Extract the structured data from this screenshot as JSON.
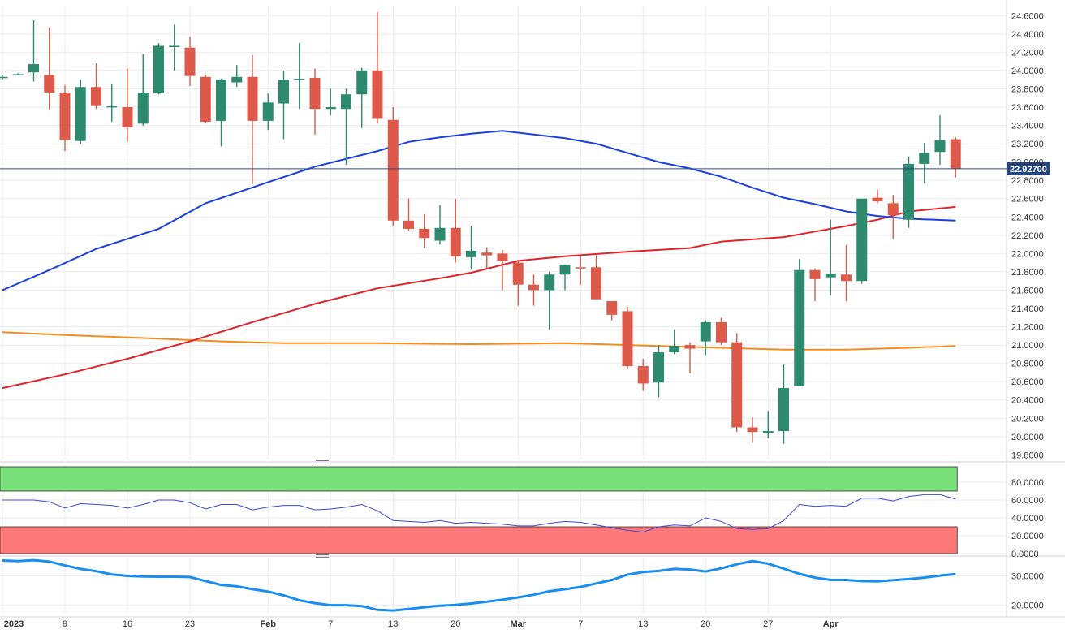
{
  "chart_data": [
    {
      "type": "candlestick",
      "panel": "price",
      "yticks": [
        "24.6000",
        "24.4000",
        "24.2000",
        "24.0000",
        "23.8000",
        "23.6000",
        "23.4000",
        "23.2000",
        "23.0000",
        "22.8000",
        "22.6000",
        "22.4000",
        "22.2000",
        "22.0000",
        "21.8000",
        "21.6000",
        "21.4000",
        "21.2000",
        "21.0000",
        "20.8000",
        "20.6000",
        "20.4000",
        "20.2000",
        "20.0000",
        "19.8000"
      ],
      "ylim": [
        19.75,
        24.7
      ],
      "current_price": 22.927,
      "current_price_label": "22.92700",
      "colors": {
        "up": "#2e8a6e",
        "down": "#dd5a4a",
        "ma_fast": "#1a40e0",
        "ma_mid": "#e0222a",
        "ma_slow": "#f58c1e",
        "price_line": "#2a4a9a"
      },
      "candles": [
        {
          "x": 0,
          "o": 23.93,
          "h": 23.95,
          "l": 23.9,
          "c": 23.93
        },
        {
          "x": 1,
          "o": 23.96,
          "h": 23.97,
          "l": 23.95,
          "c": 23.96
        },
        {
          "x": 2,
          "o": 23.98,
          "h": 24.55,
          "l": 23.88,
          "c": 24.07
        },
        {
          "x": 3,
          "o": 23.95,
          "h": 24.47,
          "l": 23.57,
          "c": 23.76
        },
        {
          "x": 4,
          "o": 23.76,
          "h": 23.84,
          "l": 23.12,
          "c": 23.24
        },
        {
          "x": 5,
          "o": 23.23,
          "h": 23.9,
          "l": 23.2,
          "c": 23.82
        },
        {
          "x": 6,
          "o": 23.82,
          "h": 24.08,
          "l": 23.58,
          "c": 23.62
        },
        {
          "x": 7,
          "o": 23.61,
          "h": 23.85,
          "l": 23.44,
          "c": 23.61
        },
        {
          "x": 8,
          "o": 23.6,
          "h": 24.02,
          "l": 23.22,
          "c": 23.38
        },
        {
          "x": 9,
          "o": 23.42,
          "h": 24.18,
          "l": 23.4,
          "c": 23.76
        },
        {
          "x": 10,
          "o": 23.75,
          "h": 24.3,
          "l": 23.74,
          "c": 24.27
        },
        {
          "x": 11,
          "o": 24.27,
          "h": 24.5,
          "l": 24.0,
          "c": 24.27
        },
        {
          "x": 12,
          "o": 24.25,
          "h": 24.37,
          "l": 23.83,
          "c": 23.94
        },
        {
          "x": 13,
          "o": 23.93,
          "h": 23.95,
          "l": 23.42,
          "c": 23.44
        },
        {
          "x": 14,
          "o": 23.45,
          "h": 23.91,
          "l": 23.17,
          "c": 23.9
        },
        {
          "x": 15,
          "o": 23.87,
          "h": 24.06,
          "l": 23.82,
          "c": 23.93
        },
        {
          "x": 16,
          "o": 23.93,
          "h": 24.17,
          "l": 22.76,
          "c": 23.45
        },
        {
          "x": 17,
          "o": 23.45,
          "h": 23.75,
          "l": 23.35,
          "c": 23.65
        },
        {
          "x": 18,
          "o": 23.64,
          "h": 24.0,
          "l": 23.25,
          "c": 23.9
        },
        {
          "x": 19,
          "o": 23.9,
          "h": 24.3,
          "l": 23.58,
          "c": 23.91
        },
        {
          "x": 20,
          "o": 23.92,
          "h": 24.02,
          "l": 23.3,
          "c": 23.58
        },
        {
          "x": 21,
          "o": 23.58,
          "h": 23.8,
          "l": 23.51,
          "c": 23.6
        },
        {
          "x": 22,
          "o": 23.58,
          "h": 23.8,
          "l": 22.97,
          "c": 23.74
        },
        {
          "x": 23,
          "o": 23.74,
          "h": 24.03,
          "l": 23.37,
          "c": 24.0
        },
        {
          "x": 24,
          "o": 24.0,
          "h": 24.64,
          "l": 23.42,
          "c": 23.48
        },
        {
          "x": 25,
          "o": 23.46,
          "h": 23.6,
          "l": 22.3,
          "c": 22.36
        },
        {
          "x": 26,
          "o": 22.36,
          "h": 22.6,
          "l": 22.25,
          "c": 22.27
        },
        {
          "x": 27,
          "o": 22.27,
          "h": 22.43,
          "l": 22.06,
          "c": 22.17
        },
        {
          "x": 28,
          "o": 22.14,
          "h": 22.53,
          "l": 22.1,
          "c": 22.28
        },
        {
          "x": 29,
          "o": 22.28,
          "h": 22.6,
          "l": 21.9,
          "c": 21.97
        },
        {
          "x": 30,
          "o": 21.96,
          "h": 22.3,
          "l": 21.83,
          "c": 22.03
        },
        {
          "x": 31,
          "o": 22.01,
          "h": 22.07,
          "l": 21.84,
          "c": 21.98
        },
        {
          "x": 32,
          "o": 22.0,
          "h": 22.04,
          "l": 21.6,
          "c": 21.92
        },
        {
          "x": 33,
          "o": 21.9,
          "h": 21.93,
          "l": 21.43,
          "c": 21.66
        },
        {
          "x": 34,
          "o": 21.66,
          "h": 21.77,
          "l": 21.43,
          "c": 21.6
        },
        {
          "x": 35,
          "o": 21.6,
          "h": 21.8,
          "l": 21.17,
          "c": 21.77
        },
        {
          "x": 36,
          "o": 21.77,
          "h": 21.87,
          "l": 21.6,
          "c": 21.88
        },
        {
          "x": 37,
          "o": 21.85,
          "h": 21.98,
          "l": 21.66,
          "c": 21.84
        },
        {
          "x": 38,
          "o": 21.85,
          "h": 21.98,
          "l": 21.5,
          "c": 21.5
        },
        {
          "x": 39,
          "o": 21.48,
          "h": 21.48,
          "l": 21.27,
          "c": 21.33
        },
        {
          "x": 40,
          "o": 21.37,
          "h": 21.42,
          "l": 20.74,
          "c": 20.77
        },
        {
          "x": 41,
          "o": 20.77,
          "h": 20.85,
          "l": 20.5,
          "c": 20.58
        },
        {
          "x": 42,
          "o": 20.59,
          "h": 21.0,
          "l": 20.43,
          "c": 20.92
        },
        {
          "x": 43,
          "o": 20.92,
          "h": 21.17,
          "l": 20.9,
          "c": 20.99
        },
        {
          "x": 44,
          "o": 21.0,
          "h": 21.03,
          "l": 20.69,
          "c": 20.96
        },
        {
          "x": 45,
          "o": 21.04,
          "h": 21.27,
          "l": 20.89,
          "c": 21.25
        },
        {
          "x": 46,
          "o": 21.25,
          "h": 21.3,
          "l": 21.0,
          "c": 21.03
        },
        {
          "x": 47,
          "o": 21.03,
          "h": 21.13,
          "l": 20.05,
          "c": 20.1
        },
        {
          "x": 48,
          "o": 20.1,
          "h": 20.21,
          "l": 19.93,
          "c": 20.05
        },
        {
          "x": 49,
          "o": 20.04,
          "h": 20.28,
          "l": 19.98,
          "c": 20.06
        },
        {
          "x": 50,
          "o": 20.06,
          "h": 20.79,
          "l": 19.92,
          "c": 20.53
        },
        {
          "x": 51,
          "o": 20.55,
          "h": 21.94,
          "l": 20.55,
          "c": 21.82
        },
        {
          "x": 52,
          "o": 21.82,
          "h": 21.84,
          "l": 21.48,
          "c": 21.72
        },
        {
          "x": 53,
          "o": 21.74,
          "h": 22.37,
          "l": 21.54,
          "c": 21.78
        },
        {
          "x": 54,
          "o": 21.77,
          "h": 22.09,
          "l": 21.48,
          "c": 21.7
        },
        {
          "x": 55,
          "o": 21.7,
          "h": 22.59,
          "l": 21.67,
          "c": 22.6
        },
        {
          "x": 56,
          "o": 22.61,
          "h": 22.7,
          "l": 22.55,
          "c": 22.57
        },
        {
          "x": 57,
          "o": 22.55,
          "h": 22.64,
          "l": 22.16,
          "c": 22.42
        },
        {
          "x": 58,
          "o": 22.37,
          "h": 23.06,
          "l": 22.28,
          "c": 22.98
        },
        {
          "x": 59,
          "o": 22.98,
          "h": 23.21,
          "l": 22.77,
          "c": 23.1
        },
        {
          "x": 60,
          "o": 23.11,
          "h": 23.51,
          "l": 22.97,
          "c": 23.24
        },
        {
          "x": 61,
          "o": 23.25,
          "h": 23.27,
          "l": 22.83,
          "c": 22.93
        }
      ],
      "ma_fast": [
        [
          0,
          21.6
        ],
        [
          3,
          21.82
        ],
        [
          6,
          22.05
        ],
        [
          10,
          22.27
        ],
        [
          13,
          22.55
        ],
        [
          17,
          22.78
        ],
        [
          20,
          22.95
        ],
        [
          24,
          23.12
        ],
        [
          26,
          23.22
        ],
        [
          28,
          23.27
        ],
        [
          30,
          23.31
        ],
        [
          32,
          23.34
        ],
        [
          34,
          23.3
        ],
        [
          36,
          23.26
        ],
        [
          38,
          23.2
        ],
        [
          40,
          23.1
        ],
        [
          42,
          23.0
        ],
        [
          44,
          22.93
        ],
        [
          46,
          22.84
        ],
        [
          48,
          22.72
        ],
        [
          50,
          22.61
        ],
        [
          52,
          22.54
        ],
        [
          54,
          22.46
        ],
        [
          56,
          22.41
        ],
        [
          58,
          22.38
        ],
        [
          61,
          22.36
        ]
      ],
      "ma_mid": [
        [
          0,
          20.53
        ],
        [
          4,
          20.68
        ],
        [
          8,
          20.85
        ],
        [
          12,
          21.04
        ],
        [
          16,
          21.25
        ],
        [
          20,
          21.45
        ],
        [
          24,
          21.62
        ],
        [
          28,
          21.73
        ],
        [
          30,
          21.79
        ],
        [
          33,
          21.92
        ],
        [
          36,
          21.97
        ],
        [
          40,
          22.02
        ],
        [
          44,
          22.06
        ],
        [
          46,
          22.13
        ],
        [
          50,
          22.18
        ],
        [
          52,
          22.24
        ],
        [
          54,
          22.3
        ],
        [
          56,
          22.37
        ],
        [
          58,
          22.46
        ],
        [
          61,
          22.51
        ]
      ],
      "ma_slow": [
        [
          0,
          21.14
        ],
        [
          4,
          21.11
        ],
        [
          10,
          21.07
        ],
        [
          14,
          21.04
        ],
        [
          18,
          21.02
        ],
        [
          24,
          21.02
        ],
        [
          30,
          21.01
        ],
        [
          36,
          21.02
        ],
        [
          42,
          20.99
        ],
        [
          46,
          20.97
        ],
        [
          50,
          20.95
        ],
        [
          54,
          20.95
        ],
        [
          58,
          20.97
        ],
        [
          61,
          20.99
        ]
      ]
    },
    {
      "type": "line",
      "panel": "rsi",
      "yticks": [
        "80.0000",
        "60.0000",
        "40.0000",
        "20.0000",
        "0.0000"
      ],
      "ylim": [
        0,
        100
      ],
      "overbought": 70,
      "oversold": 30,
      "zone_colors": {
        "overbought": "#79df79",
        "oversold": "#fd7878",
        "line": "#3a4ad6"
      },
      "values": [
        [
          0,
          60
        ],
        [
          1,
          60
        ],
        [
          2,
          60
        ],
        [
          3,
          58
        ],
        [
          4,
          51
        ],
        [
          5,
          56
        ],
        [
          6,
          55
        ],
        [
          7,
          54
        ],
        [
          8,
          51
        ],
        [
          9,
          55
        ],
        [
          10,
          60
        ],
        [
          11,
          60
        ],
        [
          12,
          57
        ],
        [
          13,
          50
        ],
        [
          14,
          55
        ],
        [
          15,
          55
        ],
        [
          16,
          49
        ],
        [
          17,
          52
        ],
        [
          18,
          54
        ],
        [
          19,
          54
        ],
        [
          20,
          49
        ],
        [
          21,
          50
        ],
        [
          22,
          52
        ],
        [
          23,
          55
        ],
        [
          24,
          48
        ],
        [
          25,
          37
        ],
        [
          26,
          36
        ],
        [
          27,
          35
        ],
        [
          28,
          37
        ],
        [
          29,
          34
        ],
        [
          30,
          35
        ],
        [
          31,
          34
        ],
        [
          32,
          33
        ],
        [
          33,
          31
        ],
        [
          34,
          31
        ],
        [
          35,
          34
        ],
        [
          36,
          36
        ],
        [
          37,
          35
        ],
        [
          38,
          32
        ],
        [
          39,
          29
        ],
        [
          40,
          26
        ],
        [
          41,
          24
        ],
        [
          42,
          30
        ],
        [
          43,
          32
        ],
        [
          44,
          31
        ],
        [
          45,
          40
        ],
        [
          46,
          36
        ],
        [
          47,
          28
        ],
        [
          48,
          27
        ],
        [
          49,
          28
        ],
        [
          50,
          37
        ],
        [
          51,
          55
        ],
        [
          52,
          53
        ],
        [
          53,
          54
        ],
        [
          54,
          53
        ],
        [
          55,
          62
        ],
        [
          56,
          62
        ],
        [
          57,
          59
        ],
        [
          58,
          64
        ],
        [
          59,
          66
        ],
        [
          60,
          66
        ],
        [
          61,
          61
        ]
      ]
    },
    {
      "type": "line",
      "panel": "indicator",
      "yticks": [
        "30.0000",
        "20.0000"
      ],
      "ylim": [
        17,
        36
      ],
      "line_color": "#1a8ef0",
      "values": [
        [
          0,
          35.3
        ],
        [
          1,
          35.1
        ],
        [
          2,
          35.4
        ],
        [
          3,
          34.9
        ],
        [
          4,
          33.6
        ],
        [
          5,
          32.4
        ],
        [
          6,
          31.6
        ],
        [
          7,
          30.5
        ],
        [
          8,
          30.0
        ],
        [
          9,
          29.8
        ],
        [
          10,
          29.7
        ],
        [
          11,
          29.7
        ],
        [
          12,
          29.6
        ],
        [
          13,
          28.2
        ],
        [
          14,
          26.9
        ],
        [
          15,
          26.4
        ],
        [
          16,
          25.4
        ],
        [
          17,
          24.6
        ],
        [
          18,
          23.3
        ],
        [
          19,
          21.6
        ],
        [
          20,
          20.6
        ],
        [
          21,
          19.9
        ],
        [
          22,
          19.9
        ],
        [
          23,
          19.6
        ],
        [
          24,
          18.3
        ],
        [
          25,
          18.1
        ],
        [
          26,
          18.6
        ],
        [
          27,
          19.2
        ],
        [
          28,
          19.7
        ],
        [
          29,
          20.0
        ],
        [
          30,
          20.5
        ],
        [
          31,
          21.1
        ],
        [
          32,
          21.8
        ],
        [
          33,
          22.6
        ],
        [
          34,
          23.5
        ],
        [
          35,
          24.7
        ],
        [
          36,
          25.4
        ],
        [
          37,
          26.2
        ],
        [
          38,
          27.4
        ],
        [
          39,
          28.6
        ],
        [
          40,
          30.4
        ],
        [
          41,
          31.3
        ],
        [
          42,
          31.7
        ],
        [
          43,
          32.4
        ],
        [
          44,
          32.2
        ],
        [
          45,
          31.5
        ],
        [
          46,
          32.6
        ],
        [
          47,
          34.0
        ],
        [
          48,
          35.1
        ],
        [
          49,
          34.2
        ],
        [
          50,
          32.5
        ],
        [
          51,
          30.7
        ],
        [
          52,
          29.4
        ],
        [
          53,
          28.6
        ],
        [
          54,
          28.6
        ],
        [
          55,
          28.2
        ],
        [
          56,
          28.1
        ],
        [
          57,
          28.5
        ],
        [
          58,
          28.9
        ],
        [
          59,
          29.4
        ],
        [
          60,
          30.1
        ],
        [
          61,
          30.6
        ]
      ]
    }
  ],
  "x_axis": [
    {
      "label": "2023",
      "idx": 0,
      "bold": true
    },
    {
      "label": "9",
      "idx": 4
    },
    {
      "label": "16",
      "idx": 8
    },
    {
      "label": "23",
      "idx": 12
    },
    {
      "label": "Feb",
      "idx": 17,
      "bold": true
    },
    {
      "label": "7",
      "idx": 21
    },
    {
      "label": "13",
      "idx": 25
    },
    {
      "label": "20",
      "idx": 29
    },
    {
      "label": "Mar",
      "idx": 33,
      "bold": true
    },
    {
      "label": "7",
      "idx": 37
    },
    {
      "label": "13",
      "idx": 41
    },
    {
      "label": "20",
      "idx": 45
    },
    {
      "label": "27",
      "idx": 49
    },
    {
      "label": "Apr",
      "idx": 53,
      "bold": true
    }
  ]
}
